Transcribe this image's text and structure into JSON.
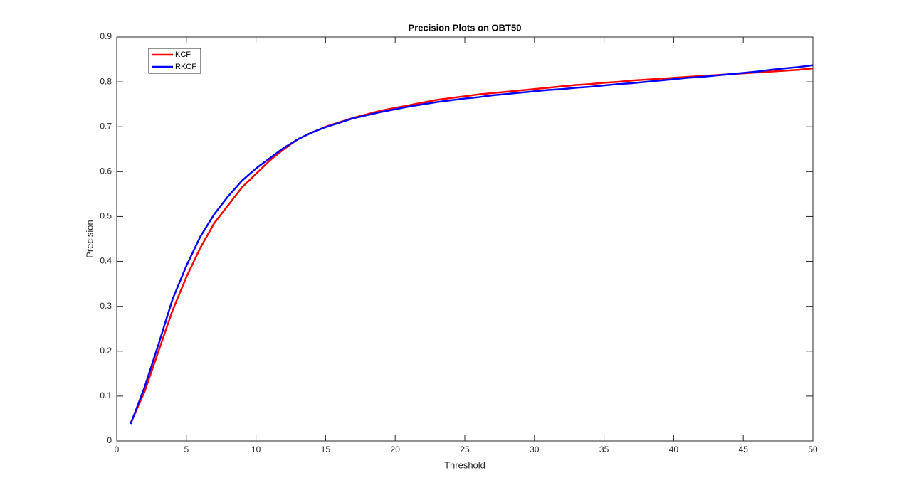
{
  "chart_data": {
    "type": "line",
    "title": "Precision Plots on OBT50",
    "x_label": "Threshold",
    "y_label": "Precision",
    "x": [
      1,
      2,
      3,
      4,
      5,
      6,
      7,
      8,
      9,
      10,
      11,
      12,
      13,
      14,
      15,
      16,
      17,
      18,
      19,
      20,
      21,
      22,
      23,
      24,
      25,
      26,
      27,
      28,
      29,
      30,
      31,
      32,
      33,
      34,
      35,
      36,
      37,
      38,
      39,
      40,
      41,
      42,
      43,
      44,
      45,
      46,
      47,
      48,
      49,
      50
    ],
    "series": [
      {
        "name": "KCF",
        "color": "#ff0000",
        "values": [
          0.04,
          0.11,
          0.2,
          0.29,
          0.365,
          0.43,
          0.485,
          0.525,
          0.565,
          0.595,
          0.625,
          0.65,
          0.672,
          0.687,
          0.7,
          0.71,
          0.72,
          0.728,
          0.736,
          0.742,
          0.748,
          0.754,
          0.76,
          0.764,
          0.768,
          0.772,
          0.775,
          0.778,
          0.781,
          0.784,
          0.787,
          0.79,
          0.793,
          0.795,
          0.798,
          0.8,
          0.803,
          0.805,
          0.807,
          0.809,
          0.811,
          0.813,
          0.815,
          0.817,
          0.819,
          0.821,
          0.823,
          0.825,
          0.827,
          0.83
        ]
      },
      {
        "name": "RKCF",
        "color": "#0000ff",
        "values": [
          0.038,
          0.12,
          0.215,
          0.315,
          0.39,
          0.455,
          0.505,
          0.545,
          0.58,
          0.607,
          0.63,
          0.653,
          0.672,
          0.687,
          0.699,
          0.709,
          0.719,
          0.726,
          0.733,
          0.739,
          0.745,
          0.75,
          0.755,
          0.759,
          0.763,
          0.766,
          0.77,
          0.773,
          0.776,
          0.779,
          0.782,
          0.784,
          0.787,
          0.789,
          0.792,
          0.795,
          0.797,
          0.8,
          0.803,
          0.806,
          0.809,
          0.811,
          0.814,
          0.817,
          0.82,
          0.823,
          0.827,
          0.83,
          0.833,
          0.837
        ]
      }
    ],
    "xlim": [
      0,
      50
    ],
    "xticks": [
      0,
      5,
      10,
      15,
      20,
      25,
      30,
      35,
      40,
      45,
      50
    ],
    "ylim": [
      0,
      0.9
    ],
    "yticks": [
      0,
      0.1,
      0.2,
      0.3,
      0.4,
      0.5,
      0.6,
      0.7,
      0.8,
      0.9
    ],
    "grid": false,
    "legend": "upper left"
  }
}
